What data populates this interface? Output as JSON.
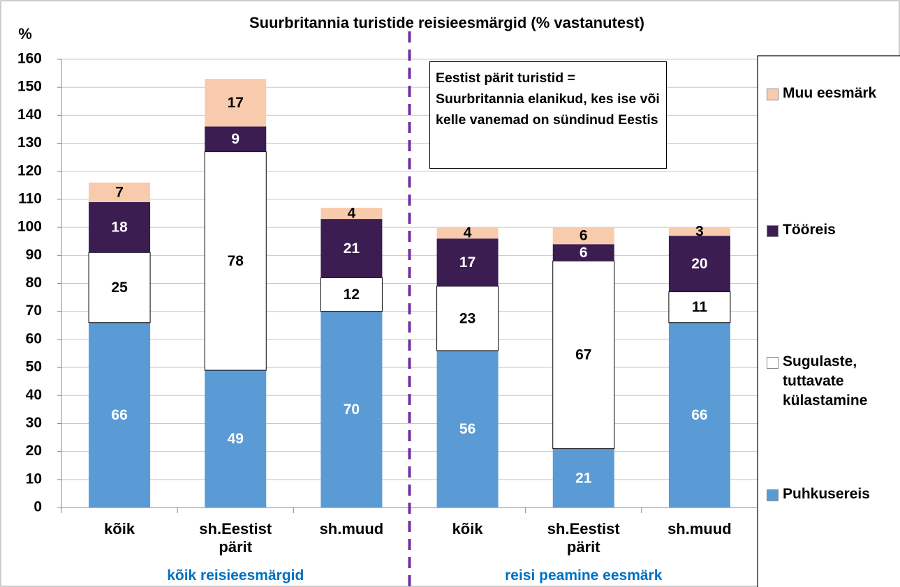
{
  "chart_data": {
    "type": "stacked_bar",
    "title": "Suurbritannia turistide reisieesmärgid (% vastanutest)",
    "y_label": "%",
    "annotation": "Eestist pärit turistid = Suurbritannia elanikud, kes ise või kelle vanemad on sündinud Eestis",
    "categories": [
      "kõik",
      "sh.Eestist pärit",
      "sh.muud",
      "kõik",
      "sh.Eestist pärit",
      "sh.muud"
    ],
    "groups": [
      {
        "label": "kõik reisieesmärgid",
        "size": 3
      },
      {
        "label": "reisi peamine eesmärk",
        "size": 3
      }
    ],
    "series": [
      {
        "name": "Puhkusereis",
        "color": "#5b9bd5",
        "values": [
          66,
          49,
          70,
          56,
          21,
          66
        ]
      },
      {
        "name": "Sugulaste, tuttavate külastamine",
        "color": "#ffffff",
        "values": [
          25,
          78,
          12,
          23,
          67,
          11
        ]
      },
      {
        "name": "Tööreis",
        "color": "#3c1d52",
        "values": [
          18,
          9,
          21,
          17,
          6,
          20
        ]
      },
      {
        "name": "Muu eesmärk",
        "color": "#f8cbad",
        "values": [
          7,
          17,
          4,
          4,
          6,
          3
        ]
      }
    ],
    "ylim": [
      0,
      160
    ],
    "yticks": [
      0,
      10,
      20,
      30,
      40,
      50,
      60,
      70,
      80,
      90,
      100,
      110,
      120,
      130,
      140,
      150,
      160
    ],
    "grid": true,
    "legend": "right"
  }
}
